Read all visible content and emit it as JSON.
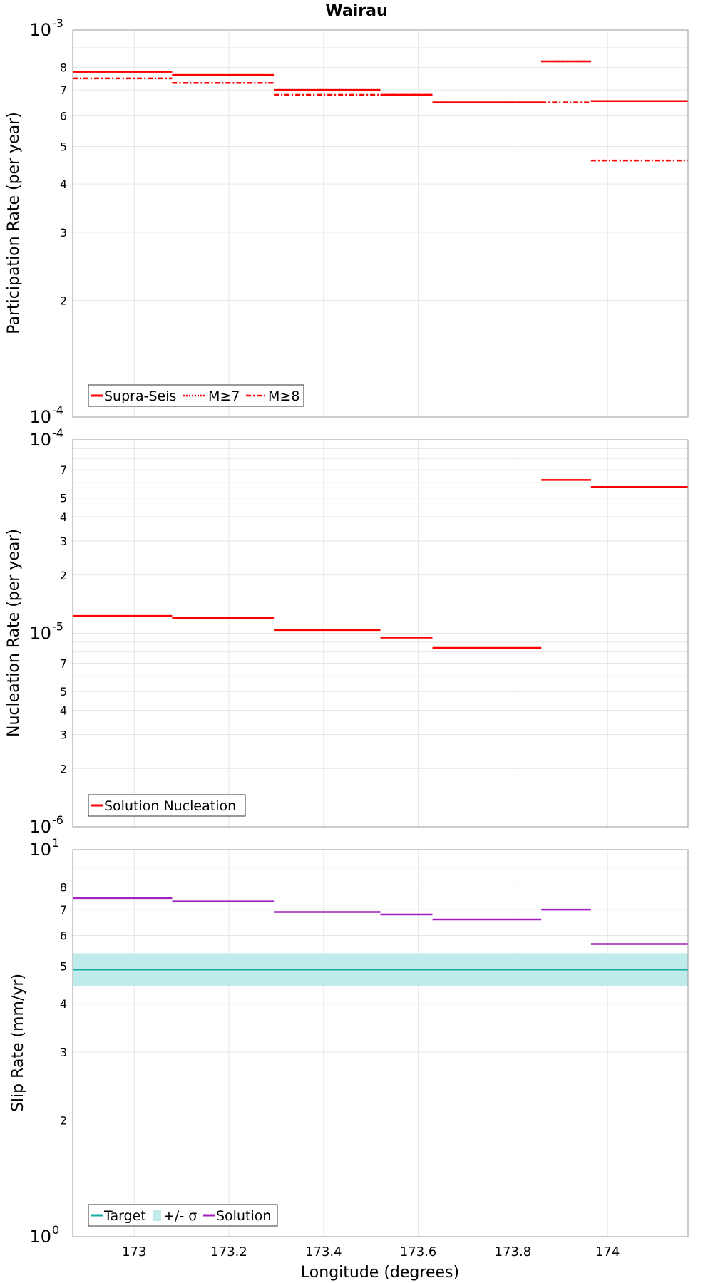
{
  "figure_title": "Wairau",
  "xlabel": "Longitude (degrees)",
  "x_ticks": [
    "173",
    "173.2",
    "173.4",
    "173.6",
    "173.8",
    "174"
  ],
  "colors": {
    "red": "#ff0000",
    "teal": "#1aa9a4",
    "band": "#bfeceb",
    "purple": "#a020c0",
    "grid": "#e6e6e6"
  },
  "chart_data": [
    {
      "type": "line",
      "panel": "participation",
      "ylabel": "Participation Rate (per year)",
      "yscale": "log",
      "xlim": [
        172.87,
        174.17
      ],
      "ylim": [
        0.0001,
        0.001
      ],
      "y_major_ticks": [
        {
          "base": "10",
          "exp": "-4"
        },
        {
          "base": "10",
          "exp": "-3"
        }
      ],
      "y_minor_ticks": [
        "2",
        "3",
        "4",
        "5",
        "6",
        "7",
        "8"
      ],
      "legend": {
        "placement": "bottom-left",
        "entries": [
          "Supra-Seis",
          "M≥7",
          "M≥8"
        ]
      },
      "series": [
        {
          "name": "Supra-Seis",
          "style": "solid",
          "segments": [
            {
              "x0": 172.87,
              "x1": 173.08,
              "y": 0.00078
            },
            {
              "x0": 173.08,
              "x1": 173.295,
              "y": 0.000765
            },
            {
              "x0": 173.295,
              "x1": 173.52,
              "y": 0.0007
            },
            {
              "x0": 173.52,
              "x1": 173.63,
              "y": 0.00068
            },
            {
              "x0": 173.63,
              "x1": 173.86,
              "y": 0.00065
            },
            {
              "x0": 173.86,
              "x1": 173.965,
              "y": 0.00083
            },
            {
              "x0": 173.965,
              "x1": 174.17,
              "y": 0.000655
            }
          ]
        },
        {
          "name": "M≥7",
          "style": "dotted",
          "segments": [
            {
              "x0": 172.87,
              "x1": 173.08,
              "y": 0.00078
            },
            {
              "x0": 173.08,
              "x1": 173.295,
              "y": 0.000765
            },
            {
              "x0": 173.295,
              "x1": 173.52,
              "y": 0.0007
            },
            {
              "x0": 173.52,
              "x1": 173.63,
              "y": 0.00068
            },
            {
              "x0": 173.63,
              "x1": 173.86,
              "y": 0.00065
            },
            {
              "x0": 173.86,
              "x1": 173.965,
              "y": 0.00083
            },
            {
              "x0": 173.965,
              "x1": 174.17,
              "y": 0.000655
            }
          ]
        },
        {
          "name": "M≥8",
          "style": "dashdot",
          "segments": [
            {
              "x0": 172.87,
              "x1": 173.08,
              "y": 0.00075
            },
            {
              "x0": 173.08,
              "x1": 173.295,
              "y": 0.00073
            },
            {
              "x0": 173.295,
              "x1": 173.52,
              "y": 0.00068
            },
            {
              "x0": 173.52,
              "x1": 173.63,
              "y": 0.00068
            },
            {
              "x0": 173.63,
              "x1": 173.86,
              "y": 0.00065
            },
            {
              "x0": 173.86,
              "x1": 173.965,
              "y": 0.00065
            },
            {
              "x0": 173.965,
              "x1": 174.17,
              "y": 0.00046
            }
          ]
        }
      ]
    },
    {
      "type": "line",
      "panel": "nucleation",
      "ylabel": "Nucleation Rate (per year)",
      "yscale": "log",
      "xlim": [
        172.87,
        174.17
      ],
      "ylim": [
        1e-06,
        0.0001
      ],
      "y_major_ticks": [
        {
          "base": "10",
          "exp": "-6"
        },
        {
          "base": "10",
          "exp": "-5"
        },
        {
          "base": "10",
          "exp": "-4"
        }
      ],
      "y_minor_ticks": [
        "2",
        "3",
        "4",
        "5",
        "7"
      ],
      "legend": {
        "placement": "bottom-left",
        "entries": [
          "Solution Nucleation"
        ]
      },
      "series": [
        {
          "name": "Solution Nucleation",
          "style": "solid",
          "segments": [
            {
              "x0": 172.87,
              "x1": 173.08,
              "y": 1.23e-05
            },
            {
              "x0": 173.08,
              "x1": 173.295,
              "y": 1.2e-05
            },
            {
              "x0": 173.295,
              "x1": 173.52,
              "y": 1.04e-05
            },
            {
              "x0": 173.52,
              "x1": 173.63,
              "y": 9.5e-06
            },
            {
              "x0": 173.63,
              "x1": 173.86,
              "y": 8.4e-06
            },
            {
              "x0": 173.86,
              "x1": 173.965,
              "y": 6.2e-05
            },
            {
              "x0": 173.965,
              "x1": 174.17,
              "y": 5.7e-05
            }
          ]
        }
      ]
    },
    {
      "type": "line",
      "panel": "slip",
      "ylabel": "Slip Rate (mm/yr)",
      "yscale": "log",
      "xlim": [
        172.87,
        174.17
      ],
      "ylim": [
        1,
        10
      ],
      "y_major_ticks": [
        {
          "base": "10",
          "exp": "0"
        },
        {
          "base": "10",
          "exp": "1"
        }
      ],
      "y_minor_ticks": [
        "2",
        "3",
        "4",
        "5",
        "6",
        "7",
        "8"
      ],
      "legend": {
        "placement": "bottom-left",
        "entries": [
          "Target",
          "+/- σ",
          "Solution"
        ]
      },
      "target": 4.9,
      "band": [
        4.45,
        5.4
      ],
      "series": [
        {
          "name": "Solution",
          "style": "solid",
          "segments": [
            {
              "x0": 172.87,
              "x1": 173.08,
              "y": 7.5
            },
            {
              "x0": 173.08,
              "x1": 173.295,
              "y": 7.35
            },
            {
              "x0": 173.295,
              "x1": 173.52,
              "y": 6.9
            },
            {
              "x0": 173.52,
              "x1": 173.63,
              "y": 6.8
            },
            {
              "x0": 173.63,
              "x1": 173.86,
              "y": 6.6
            },
            {
              "x0": 173.86,
              "x1": 173.965,
              "y": 7.0
            },
            {
              "x0": 173.965,
              "x1": 174.17,
              "y": 5.7
            }
          ]
        }
      ]
    }
  ]
}
